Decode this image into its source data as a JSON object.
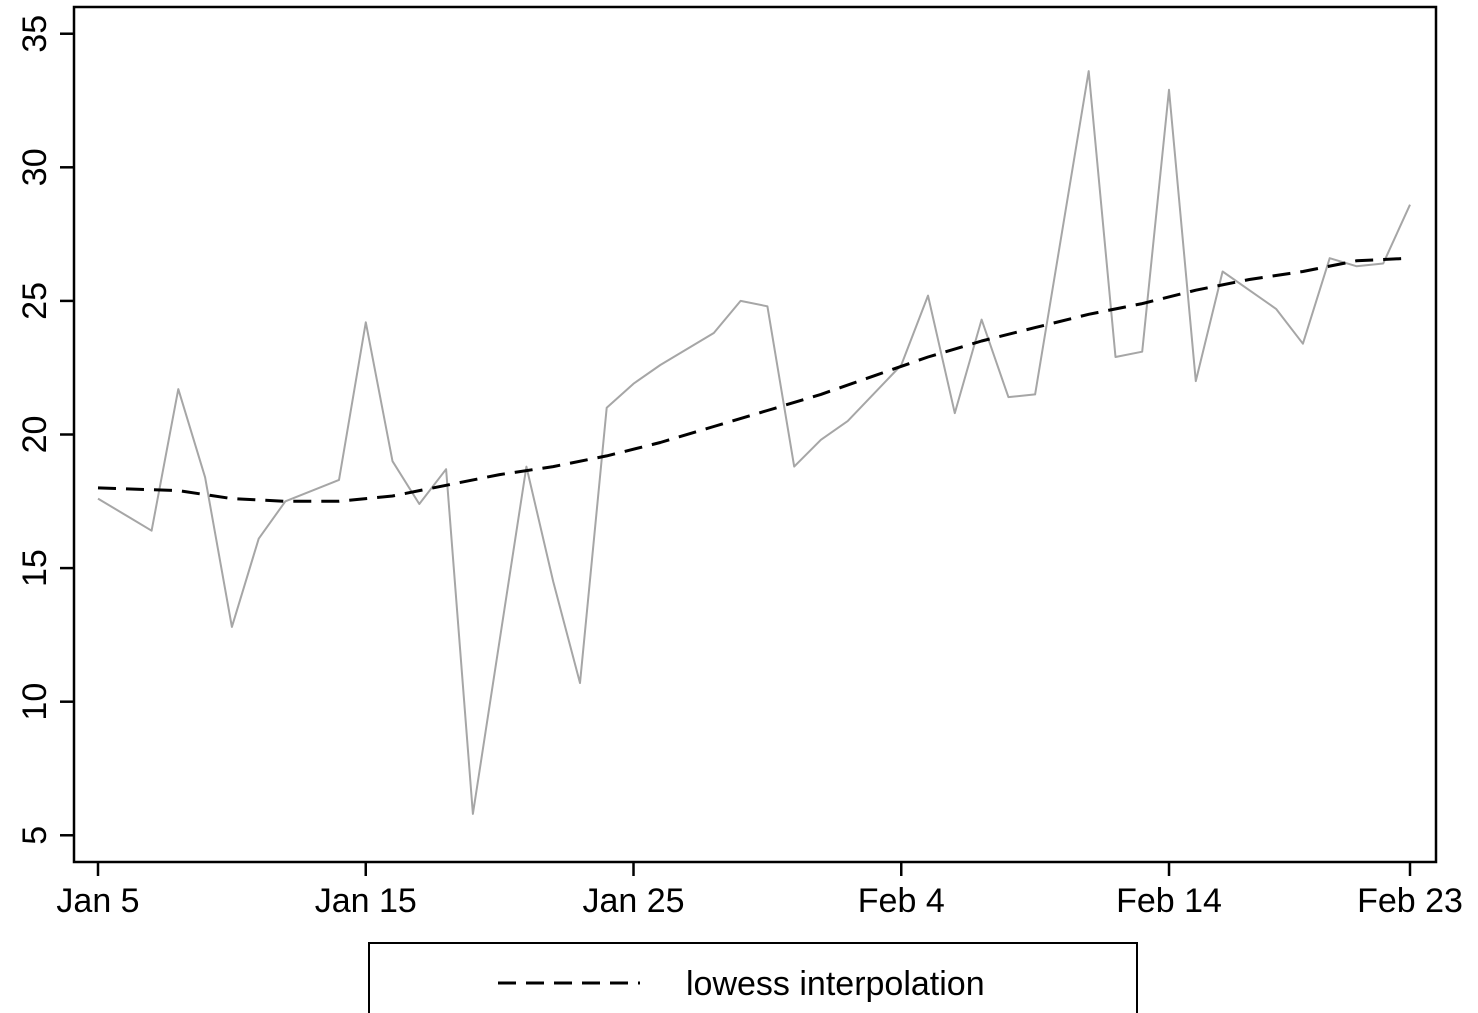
{
  "chart_data": {
    "type": "line",
    "title": "",
    "xlabel": "",
    "ylabel": "",
    "x_axis": {
      "kind": "date",
      "range": [
        "Jan 5",
        "Feb 23"
      ],
      "ticks": [
        "Jan 5",
        "Jan 15",
        "Jan 25",
        "Feb 4",
        "Feb 14",
        "Feb 23"
      ]
    },
    "y_axis": {
      "range": [
        4,
        36
      ],
      "ticks": [
        5,
        10,
        15,
        20,
        25,
        30,
        35
      ]
    },
    "grid": false,
    "legend": {
      "placement": "bottom",
      "entries": [
        "lowess interpolation"
      ]
    },
    "series": [
      {
        "style": "solid",
        "color": "#a6a6a6",
        "points": [
          {
            "x": "Jan 5",
            "y": 17.6
          },
          {
            "x": "Jan 7",
            "y": 16.4
          },
          {
            "x": "Jan 8",
            "y": 21.7
          },
          {
            "x": "Jan 9",
            "y": 18.4
          },
          {
            "x": "Jan 10",
            "y": 12.8
          },
          {
            "x": "Jan 11",
            "y": 16.1
          },
          {
            "x": "Jan 12",
            "y": 17.5
          },
          {
            "x": "Jan 14",
            "y": 18.3
          },
          {
            "x": "Jan 15",
            "y": 24.2
          },
          {
            "x": "Jan 16",
            "y": 19.0
          },
          {
            "x": "Jan 17",
            "y": 17.4
          },
          {
            "x": "Jan 18",
            "y": 18.7
          },
          {
            "x": "Jan 19",
            "y": 5.8
          },
          {
            "x": "Jan 21",
            "y": 18.8
          },
          {
            "x": "Jan 22",
            "y": 14.5
          },
          {
            "x": "Jan 23",
            "y": 10.7
          },
          {
            "x": "Jan 24",
            "y": 21.0
          },
          {
            "x": "Jan 25",
            "y": 21.9
          },
          {
            "x": "Jan 26",
            "y": 22.6
          },
          {
            "x": "Jan 28",
            "y": 23.8
          },
          {
            "x": "Jan 29",
            "y": 25.0
          },
          {
            "x": "Jan 30",
            "y": 24.8
          },
          {
            "x": "Jan 31",
            "y": 18.8
          },
          {
            "x": "Feb 1",
            "y": 19.8
          },
          {
            "x": "Feb 2",
            "y": 20.5
          },
          {
            "x": "Feb 4",
            "y": 22.6
          },
          {
            "x": "Feb 5",
            "y": 25.2
          },
          {
            "x": "Feb 6",
            "y": 20.8
          },
          {
            "x": "Feb 7",
            "y": 24.3
          },
          {
            "x": "Feb 8",
            "y": 21.4
          },
          {
            "x": "Feb 9",
            "y": 21.5
          },
          {
            "x": "Feb 11",
            "y": 33.6
          },
          {
            "x": "Feb 12",
            "y": 22.9
          },
          {
            "x": "Feb 13",
            "y": 23.1
          },
          {
            "x": "Feb 14",
            "y": 32.9
          },
          {
            "x": "Feb 15",
            "y": 22.0
          },
          {
            "x": "Feb 16",
            "y": 26.1
          },
          {
            "x": "Feb 18",
            "y": 24.7
          },
          {
            "x": "Feb 19",
            "y": 23.4
          },
          {
            "x": "Feb 20",
            "y": 26.6
          },
          {
            "x": "Feb 21",
            "y": 26.3
          },
          {
            "x": "Feb 22",
            "y": 26.4
          },
          {
            "x": "Feb 23",
            "y": 28.6
          }
        ]
      },
      {
        "name": "lowess interpolation",
        "style": "dashed",
        "color": "#000000",
        "points": [
          {
            "x": "Jan 5",
            "y": 18.0
          },
          {
            "x": "Jan 8",
            "y": 17.9
          },
          {
            "x": "Jan 10",
            "y": 17.6
          },
          {
            "x": "Jan 12",
            "y": 17.5
          },
          {
            "x": "Jan 14",
            "y": 17.5
          },
          {
            "x": "Jan 16",
            "y": 17.7
          },
          {
            "x": "Jan 18",
            "y": 18.1
          },
          {
            "x": "Jan 20",
            "y": 18.5
          },
          {
            "x": "Jan 22",
            "y": 18.8
          },
          {
            "x": "Jan 24",
            "y": 19.2
          },
          {
            "x": "Jan 26",
            "y": 19.7
          },
          {
            "x": "Jan 28",
            "y": 20.3
          },
          {
            "x": "Jan 30",
            "y": 20.9
          },
          {
            "x": "Feb 1",
            "y": 21.5
          },
          {
            "x": "Feb 3",
            "y": 22.2
          },
          {
            "x": "Feb 5",
            "y": 22.9
          },
          {
            "x": "Feb 7",
            "y": 23.5
          },
          {
            "x": "Feb 9",
            "y": 24.0
          },
          {
            "x": "Feb 11",
            "y": 24.5
          },
          {
            "x": "Feb 13",
            "y": 24.9
          },
          {
            "x": "Feb 15",
            "y": 25.4
          },
          {
            "x": "Feb 17",
            "y": 25.8
          },
          {
            "x": "Feb 19",
            "y": 26.1
          },
          {
            "x": "Feb 21",
            "y": 26.5
          },
          {
            "x": "Feb 23",
            "y": 26.6
          }
        ]
      }
    ]
  }
}
